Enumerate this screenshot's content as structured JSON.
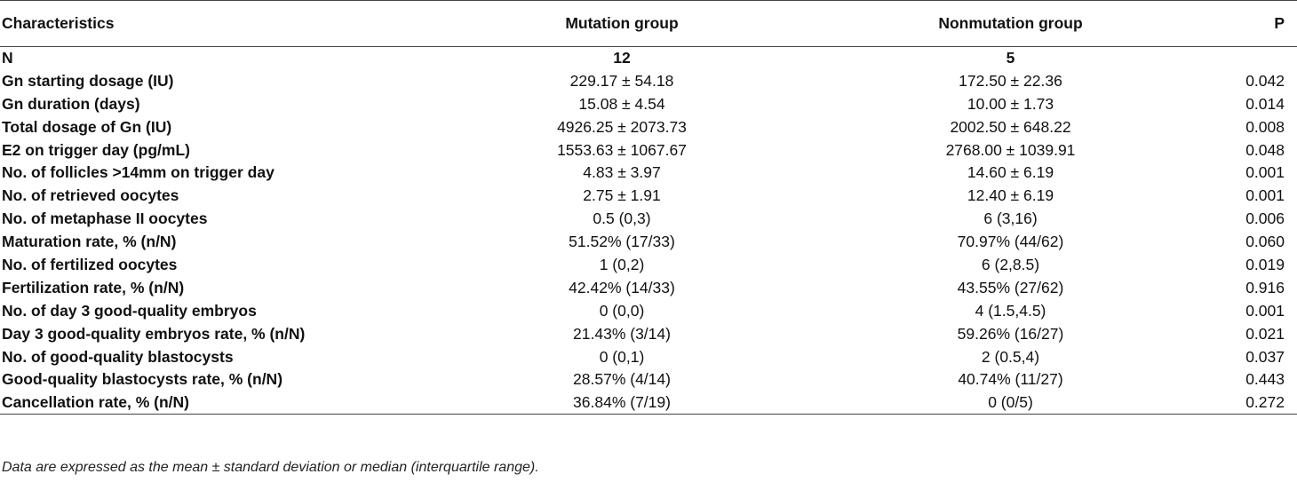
{
  "table": {
    "headers": {
      "characteristics": "Characteristics",
      "mutation": "Mutation group",
      "nonmutation": "Nonmutation group",
      "p": "P"
    },
    "rows": [
      {
        "label": "N",
        "mutation": "12",
        "nonmutation": "5",
        "p": ""
      },
      {
        "label": "Gn starting dosage (IU)",
        "mutation": "229.17 ± 54.18",
        "nonmutation": "172.50 ± 22.36",
        "p": "0.042"
      },
      {
        "label": "Gn duration (days)",
        "mutation": "15.08 ± 4.54",
        "nonmutation": "10.00 ± 1.73",
        "p": "0.014"
      },
      {
        "label": "Total dosage of Gn (IU)",
        "mutation": "4926.25 ± 2073.73",
        "nonmutation": "2002.50 ± 648.22",
        "p": "0.008"
      },
      {
        "label": "E2 on trigger day (pg/mL)",
        "mutation": "1553.63 ± 1067.67",
        "nonmutation": "2768.00 ± 1039.91",
        "p": "0.048"
      },
      {
        "label": "No. of follicles >14mm on trigger day",
        "mutation": "4.83 ± 3.97",
        "nonmutation": "14.60 ± 6.19",
        "p": "0.001"
      },
      {
        "label": "No. of retrieved oocytes",
        "mutation": "2.75 ± 1.91",
        "nonmutation": "12.40 ± 6.19",
        "p": "0.001"
      },
      {
        "label": "No. of metaphase II oocytes",
        "mutation": "0.5 (0,3)",
        "nonmutation": "6 (3,16)",
        "p": "0.006"
      },
      {
        "label": "Maturation rate, % (n/N)",
        "mutation": "51.52% (17/33)",
        "nonmutation": "70.97% (44/62)",
        "p": "0.060"
      },
      {
        "label": "No. of fertilized oocytes",
        "mutation": "1 (0,2)",
        "nonmutation": "6 (2,8.5)",
        "p": "0.019"
      },
      {
        "label": "Fertilization rate, % (n/N)",
        "mutation": "42.42% (14/33)",
        "nonmutation": "43.55% (27/62)",
        "p": "0.916"
      },
      {
        "label": "No. of day 3 good-quality embryos",
        "mutation": "0 (0,0)",
        "nonmutation": "4 (1.5,4.5)",
        "p": "0.001"
      },
      {
        "label": "Day 3 good-quality embryos rate, % (n/N)",
        "mutation": "21.43% (3/14)",
        "nonmutation": "59.26% (16/27)",
        "p": "0.021"
      },
      {
        "label": "No. of good-quality blastocysts",
        "mutation": "0 (0,1)",
        "nonmutation": "2 (0.5,4)",
        "p": "0.037"
      },
      {
        "label": "Good-quality blastocysts rate, % (n/N)",
        "mutation": "28.57% (4/14)",
        "nonmutation": "40.74% (11/27)",
        "p": "0.443"
      },
      {
        "label": "Cancellation rate, % (n/N)",
        "mutation": "36.84% (7/19)",
        "nonmutation": "0 (0/5)",
        "p": "0.272"
      }
    ]
  },
  "footnote": "Data are expressed as the mean ± standard deviation or median (interquartile range)."
}
